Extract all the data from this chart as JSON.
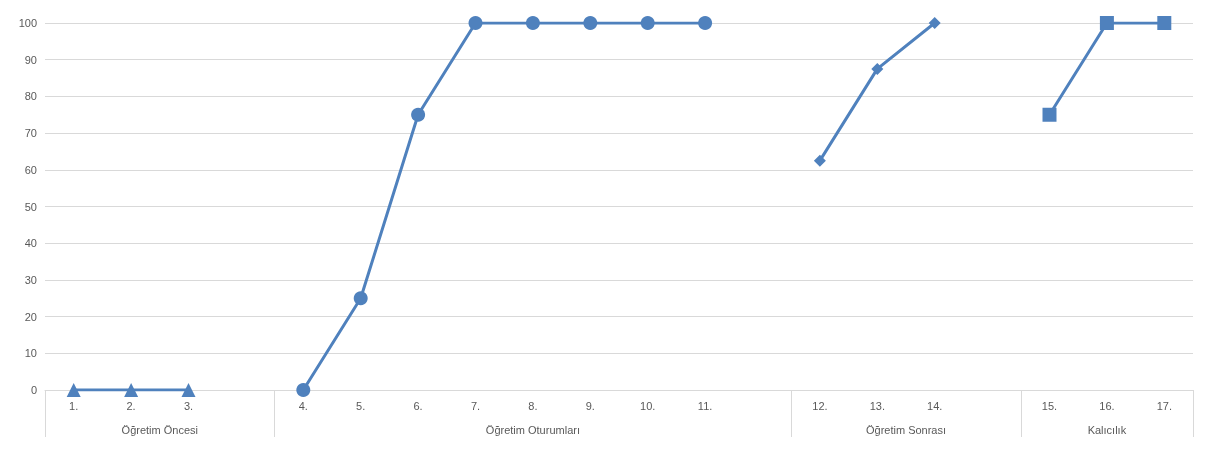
{
  "chart_data": {
    "type": "line",
    "categories": [
      "1.",
      "2.",
      "3.",
      null,
      "4.",
      "5.",
      "6.",
      "7.",
      "8.",
      "9.",
      "10.",
      "11.",
      null,
      "12.",
      "13.",
      "14.",
      null,
      "15.",
      "16.",
      "17."
    ],
    "series": [
      {
        "color": "#4f81bd",
        "marker": "triangle",
        "values": [
          0,
          0,
          0,
          null,
          null,
          null,
          null,
          null,
          null,
          null,
          null,
          null,
          null,
          null,
          null,
          null,
          null,
          null,
          null,
          null
        ]
      },
      {
        "color": "#4f81bd",
        "marker": "circle",
        "values": [
          null,
          null,
          null,
          null,
          0,
          25,
          75,
          100,
          100,
          100,
          100,
          100,
          null,
          null,
          null,
          null,
          null,
          null,
          null,
          null
        ]
      },
      {
        "color": "#4f81bd",
        "marker": "diamond",
        "values": [
          null,
          null,
          null,
          null,
          null,
          null,
          null,
          null,
          null,
          null,
          null,
          null,
          null,
          62.5,
          87.5,
          100,
          null,
          null,
          null,
          null
        ]
      },
      {
        "color": "#4f81bd",
        "marker": "square",
        "values": [
          null,
          null,
          null,
          null,
          null,
          null,
          null,
          null,
          null,
          null,
          null,
          null,
          null,
          null,
          null,
          null,
          null,
          75,
          100,
          100
        ]
      }
    ],
    "annotations": [
      "Öğretim Öncesi",
      "Öğretim Oturumları",
      "Öğretim Sonrası",
      "Kalıcılık"
    ],
    "ylim": [
      0,
      100
    ],
    "yticks": [
      0,
      10,
      20,
      30,
      40,
      50,
      60,
      70,
      80,
      90,
      100
    ],
    "grid": "y",
    "line_style": "solid"
  }
}
